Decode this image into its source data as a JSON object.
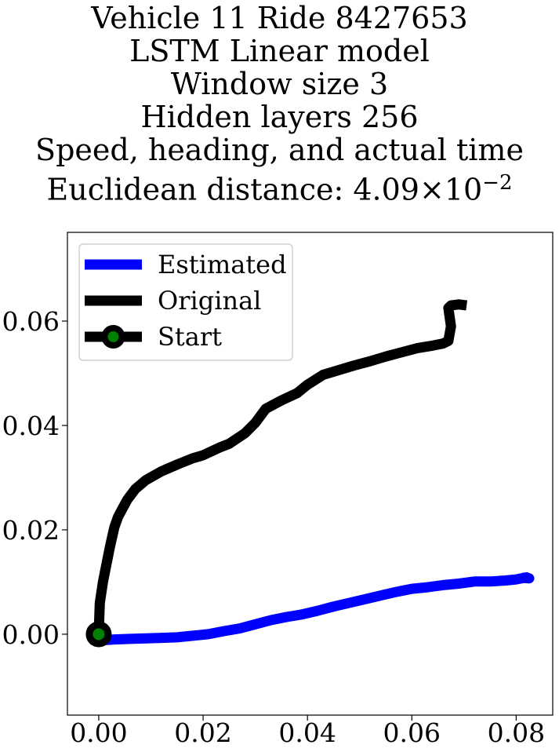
{
  "title_lines": [
    "Vehicle 11 Ride 8427653",
    "LSTM Linear model",
    "Window size 3",
    "Hidden layers 256",
    "Speed, heading, and actual time"
  ],
  "title_distance": {
    "prefix": "Euclidean distance: ",
    "mantissa": "4.09",
    "times": "×",
    "base": "10",
    "exponent": "−2"
  },
  "colors": {
    "estimated": "#0000ff",
    "original": "#000000",
    "start_marker_fill": "#008000",
    "start_marker_edge": "#000000"
  },
  "chart_data": {
    "type": "line",
    "title": "Vehicle 11 Ride 8427653 LSTM Linear model Window size 3 Hidden layers 256 Speed, heading, and actual time Euclidean distance: 4.09×10^-2",
    "xlabel": "",
    "ylabel": "",
    "xlim": [
      -0.006,
      0.087
    ],
    "ylim": [
      -0.0155,
      0.077
    ],
    "xticks": [
      "0.00",
      "0.02",
      "0.04",
      "0.06",
      "0.08"
    ],
    "xtick_values": [
      0.0,
      0.02,
      0.04,
      0.06,
      0.08
    ],
    "yticks": [
      "0.00",
      "0.02",
      "0.04",
      "0.06"
    ],
    "ytick_values": [
      0.0,
      0.02,
      0.04,
      0.06
    ],
    "grid": false,
    "legend_position": "upper-left",
    "series": [
      {
        "name": "Estimated",
        "x": [
          -0.0015,
          0.0,
          0.003,
          0.006,
          0.009,
          0.012,
          0.015,
          0.018,
          0.021,
          0.024,
          0.027,
          0.03,
          0.033,
          0.036,
          0.039,
          0.042,
          0.045,
          0.048,
          0.051,
          0.054,
          0.057,
          0.06,
          0.063,
          0.066,
          0.069,
          0.072,
          0.075,
          0.078,
          0.08,
          0.082,
          0.0825,
          0.081
        ],
        "y": [
          -0.001,
          -0.0012,
          -0.001,
          -0.0009,
          -0.0008,
          -0.0007,
          -0.0006,
          -0.0003,
          0.0,
          0.0006,
          0.0011,
          0.0019,
          0.0027,
          0.0033,
          0.0038,
          0.0045,
          0.0053,
          0.006,
          0.0067,
          0.0074,
          0.0081,
          0.0087,
          0.009,
          0.0094,
          0.0097,
          0.0101,
          0.0101,
          0.0103,
          0.0105,
          0.0109,
          0.0107,
          0.0108
        ]
      },
      {
        "name": "Original",
        "x": [
          0.0,
          0.0002,
          0.0008,
          0.0015,
          0.0022,
          0.003,
          0.0037,
          0.0045,
          0.0055,
          0.007,
          0.009,
          0.012,
          0.015,
          0.018,
          0.02,
          0.023,
          0.025,
          0.028,
          0.03,
          0.032,
          0.035,
          0.038,
          0.04,
          0.043,
          0.046,
          0.049,
          0.052,
          0.055,
          0.058,
          0.061,
          0.064,
          0.066,
          0.067,
          0.0675,
          0.067,
          0.0675,
          0.069,
          0.0705
        ],
        "y": [
          0.0,
          0.006,
          0.01,
          0.0135,
          0.017,
          0.0205,
          0.0225,
          0.024,
          0.0258,
          0.0278,
          0.0295,
          0.0312,
          0.0325,
          0.0337,
          0.0343,
          0.0357,
          0.0365,
          0.0385,
          0.0405,
          0.0432,
          0.0448,
          0.0462,
          0.0478,
          0.0497,
          0.0506,
          0.0515,
          0.0523,
          0.0532,
          0.054,
          0.0548,
          0.0553,
          0.0557,
          0.0562,
          0.059,
          0.0625,
          0.063,
          0.0632,
          0.063
        ]
      },
      {
        "name": "Start",
        "x": [
          0.0
        ],
        "y": [
          0.0
        ]
      }
    ]
  }
}
